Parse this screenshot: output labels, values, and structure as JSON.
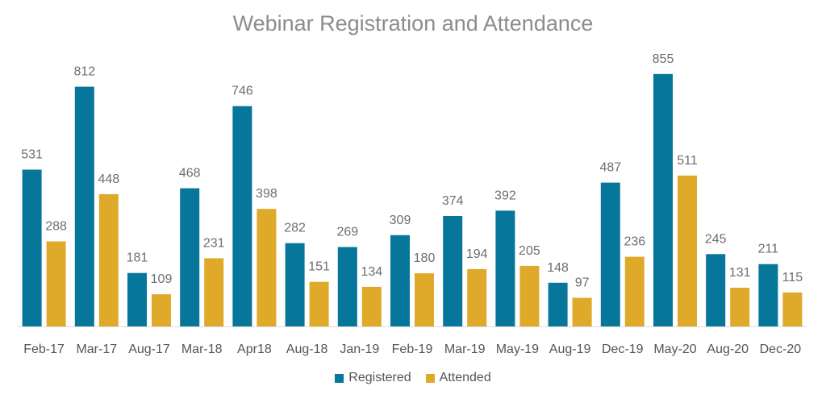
{
  "chart_data": {
    "type": "bar",
    "title": "Webinar Registration and Attendance",
    "categories": [
      "Feb-17",
      "Mar-17",
      "Aug-17",
      "Mar-18",
      "Apr18",
      "Aug-18",
      "Jan-19",
      "Feb-19",
      "Mar-19",
      "May-19",
      "Aug-19",
      "Dec-19",
      "May-20",
      "Aug-20",
      "Dec-20"
    ],
    "series": [
      {
        "name": "Registered",
        "color": "#06769A",
        "values": [
          531,
          812,
          181,
          468,
          746,
          282,
          269,
          309,
          374,
          392,
          148,
          487,
          855,
          245,
          211
        ]
      },
      {
        "name": "Attended",
        "color": "#DFAA2A",
        "values": [
          288,
          448,
          109,
          231,
          398,
          151,
          134,
          180,
          194,
          205,
          97,
          236,
          511,
          131,
          115
        ]
      }
    ],
    "xlabel": "",
    "ylabel": "",
    "ylim": [
      0,
      900
    ],
    "grid": false,
    "legend": "bottom-center",
    "data_labels": true
  }
}
